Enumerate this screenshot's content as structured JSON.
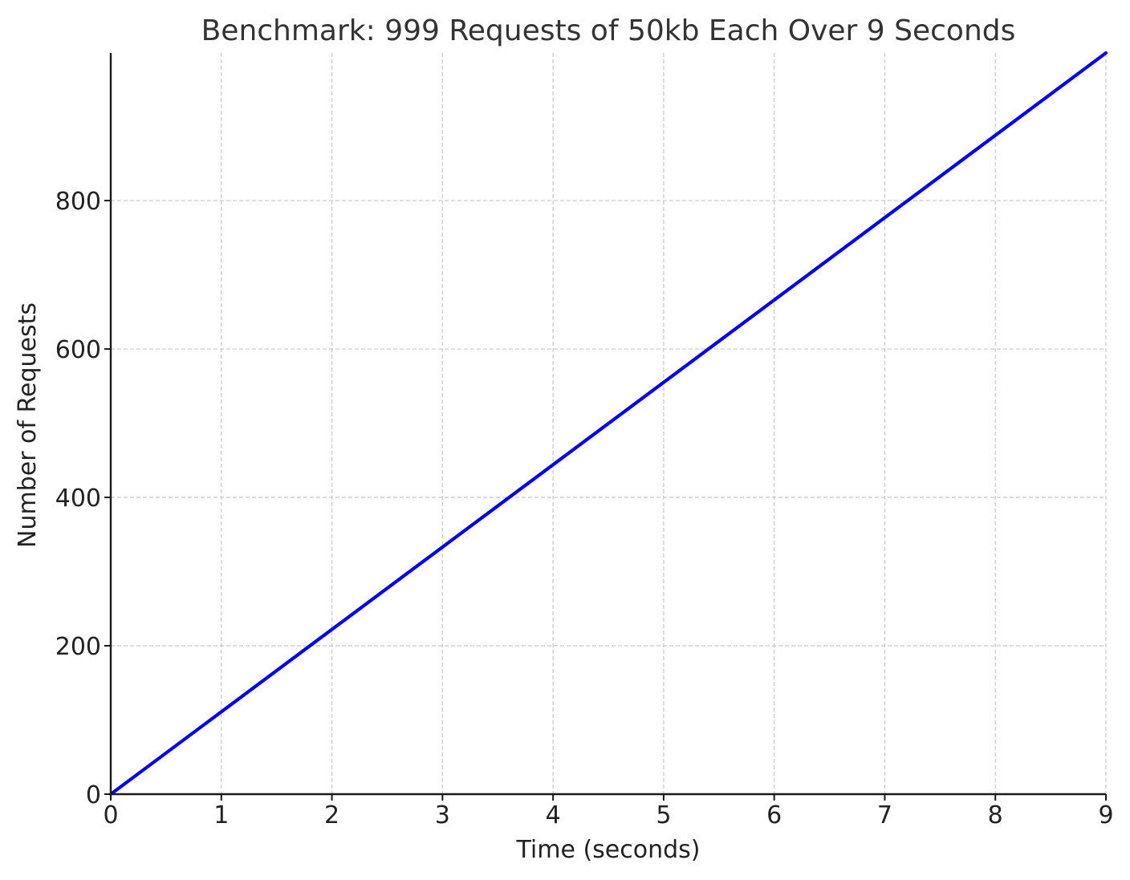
{
  "chart_data": {
    "type": "line",
    "title": "Benchmark: 999 Requests of 50kb Each Over 9 Seconds",
    "xlabel": "Time (seconds)",
    "ylabel": "Number of Requests",
    "xlim": [
      0,
      9
    ],
    "ylim": [
      0,
      999
    ],
    "x_ticks": [
      0,
      1,
      2,
      3,
      4,
      5,
      6,
      7,
      8,
      9
    ],
    "y_ticks": [
      0,
      200,
      400,
      600,
      800
    ],
    "x_tick_labels": [
      "0",
      "1",
      "2",
      "3",
      "4",
      "5",
      "6",
      "7",
      "8",
      "9"
    ],
    "y_tick_labels": [
      "0",
      "200",
      "400",
      "600",
      "800"
    ],
    "grid": true,
    "series": [
      {
        "color": "#0000ee",
        "x": [
          0,
          9
        ],
        "y": [
          0,
          999
        ]
      }
    ]
  }
}
